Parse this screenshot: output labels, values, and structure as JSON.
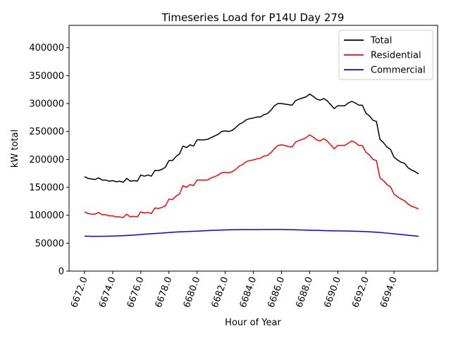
{
  "chart_data": {
    "type": "line",
    "title": "Timeseries Load for P14U   Day 279",
    "xlabel": "Hour of Year",
    "ylabel": "kW total",
    "xlim": [
      6670.9,
      6697.1
    ],
    "ylim": [
      0,
      440000
    ],
    "xticks": [
      6672.0,
      6674.0,
      6676.0,
      6678.0,
      6680.0,
      6682.0,
      6684.0,
      6686.0,
      6688.0,
      6690.0,
      6692.0,
      6694.0
    ],
    "xtick_labels": [
      "6672.0",
      "6674.0",
      "6676.0",
      "6678.0",
      "6680.0",
      "6682.0",
      "6684.0",
      "6686.0",
      "6688.0",
      "6690.0",
      "6692.0",
      "6694.0"
    ],
    "yticks": [
      0,
      50000,
      100000,
      150000,
      200000,
      250000,
      300000,
      350000,
      400000
    ],
    "ytick_labels": [
      "0",
      "50000",
      "100000",
      "150000",
      "200000",
      "250000",
      "300000",
      "350000",
      "400000"
    ],
    "legend_position": "top-right",
    "series": [
      {
        "name": "Total",
        "color": "#000000",
        "x": [
          6672.0,
          6672.25,
          6672.5,
          6672.75,
          6673.0,
          6673.25,
          6673.5,
          6673.75,
          6674.0,
          6674.25,
          6674.5,
          6674.75,
          6675.0,
          6675.25,
          6675.5,
          6675.75,
          6676.0,
          6676.25,
          6676.5,
          6676.75,
          6677.0,
          6677.25,
          6677.5,
          6677.75,
          6678.0,
          6678.25,
          6678.5,
          6678.75,
          6679.0,
          6679.25,
          6679.5,
          6679.75,
          6680.0,
          6680.25,
          6680.5,
          6680.75,
          6681.0,
          6681.25,
          6681.5,
          6681.75,
          6682.0,
          6682.25,
          6682.5,
          6682.75,
          6683.0,
          6683.25,
          6683.5,
          6683.75,
          6684.0,
          6684.25,
          6684.5,
          6684.75,
          6685.0,
          6685.25,
          6685.5,
          6685.75,
          6686.0,
          6686.25,
          6686.5,
          6686.75,
          6687.0,
          6687.25,
          6687.5,
          6687.75,
          6688.0,
          6688.25,
          6688.5,
          6688.75,
          6689.0,
          6689.25,
          6689.5,
          6689.75,
          6690.0,
          6690.25,
          6690.5,
          6690.75,
          6691.0,
          6691.25,
          6691.5,
          6691.75,
          6692.0,
          6692.25,
          6692.5,
          6692.75,
          6693.0,
          6693.25,
          6693.5,
          6693.75,
          6694.0,
          6694.25,
          6694.5,
          6694.75,
          6695.0,
          6695.25,
          6695.5,
          6695.75
        ],
        "values": [
          169000,
          166000,
          165000,
          164000,
          167000,
          163000,
          163000,
          161000,
          162000,
          160000,
          161000,
          159000,
          166000,
          161000,
          162000,
          161000,
          172000,
          170000,
          172000,
          170000,
          180000,
          180000,
          182000,
          186000,
          198000,
          198000,
          205000,
          210000,
          224000,
          221000,
          226000,
          224000,
          235000,
          235000,
          235000,
          236000,
          239000,
          242000,
          245000,
          250000,
          251000,
          250000,
          252000,
          257000,
          263000,
          266000,
          271000,
          273000,
          274000,
          276000,
          276000,
          280000,
          282000,
          288000,
          296000,
          300000,
          300000,
          299000,
          298000,
          297000,
          305000,
          308000,
          310000,
          312000,
          317000,
          313000,
          308000,
          306000,
          309000,
          305000,
          298000,
          291000,
          296000,
          296000,
          296000,
          301000,
          304000,
          301000,
          297000,
          297000,
          283000,
          278000,
          270000,
          268000,
          236000,
          230000,
          222000,
          218000,
          204000,
          199000,
          195000,
          193000,
          185000,
          181000,
          178000,
          174000
        ]
      },
      {
        "name": "Residential",
        "color": "#ff0000",
        "x": [
          6672.0,
          6672.25,
          6672.5,
          6672.75,
          6673.0,
          6673.25,
          6673.5,
          6673.75,
          6674.0,
          6674.25,
          6674.5,
          6674.75,
          6675.0,
          6675.25,
          6675.5,
          6675.75,
          6676.0,
          6676.25,
          6676.5,
          6676.75,
          6677.0,
          6677.25,
          6677.5,
          6677.75,
          6678.0,
          6678.25,
          6678.5,
          6678.75,
          6679.0,
          6679.25,
          6679.5,
          6679.75,
          6680.0,
          6680.25,
          6680.5,
          6680.75,
          6681.0,
          6681.25,
          6681.5,
          6681.75,
          6682.0,
          6682.25,
          6682.5,
          6682.75,
          6683.0,
          6683.25,
          6683.5,
          6683.75,
          6684.0,
          6684.25,
          6684.5,
          6684.75,
          6685.0,
          6685.25,
          6685.5,
          6685.75,
          6686.0,
          6686.25,
          6686.5,
          6686.75,
          6687.0,
          6687.25,
          6687.5,
          6687.75,
          6688.0,
          6688.25,
          6688.5,
          6688.75,
          6689.0,
          6689.25,
          6689.5,
          6689.75,
          6690.0,
          6690.25,
          6690.5,
          6690.75,
          6691.0,
          6691.25,
          6691.5,
          6691.75,
          6692.0,
          6692.25,
          6692.5,
          6692.75,
          6693.0,
          6693.25,
          6693.5,
          6693.75,
          6694.0,
          6694.25,
          6694.5,
          6694.75,
          6695.0,
          6695.25,
          6695.5,
          6695.75
        ],
        "values": [
          106000,
          103000,
          102000,
          102000,
          105000,
          101000,
          101000,
          99000,
          99000,
          97000,
          97000,
          96000,
          102000,
          97000,
          98000,
          97000,
          106000,
          104000,
          105000,
          103000,
          113000,
          112000,
          114000,
          117000,
          129000,
          128000,
          134000,
          138000,
          153000,
          150000,
          155000,
          153000,
          163000,
          163000,
          163000,
          163000,
          167000,
          169000,
          172000,
          176000,
          177000,
          176000,
          178000,
          182000,
          188000,
          191000,
          196000,
          198000,
          199000,
          201000,
          202000,
          206000,
          207000,
          212000,
          219000,
          225000,
          226000,
          225000,
          223000,
          222000,
          231000,
          234000,
          236000,
          239000,
          244000,
          240000,
          235000,
          233000,
          237000,
          233000,
          226000,
          219000,
          225000,
          225000,
          225000,
          229000,
          233000,
          230000,
          225000,
          225000,
          213000,
          208000,
          200000,
          198000,
          167000,
          162000,
          155000,
          151000,
          138000,
          133000,
          129000,
          126000,
          120000,
          116000,
          114000,
          111000
        ]
      },
      {
        "name": "Commercial",
        "color": "#0000ff",
        "x": [
          6672.0,
          6672.5,
          6673.0,
          6673.5,
          6674.0,
          6674.5,
          6675.0,
          6675.5,
          6676.0,
          6676.5,
          6677.0,
          6677.5,
          6678.0,
          6678.5,
          6679.0,
          6679.5,
          6680.0,
          6680.5,
          6681.0,
          6681.5,
          6682.0,
          6682.5,
          6683.0,
          6683.5,
          6684.0,
          6684.5,
          6685.0,
          6685.5,
          6686.0,
          6686.5,
          6687.0,
          6687.5,
          6688.0,
          6688.5,
          6689.0,
          6689.5,
          6690.0,
          6690.5,
          6691.0,
          6691.5,
          6692.0,
          6692.5,
          6693.0,
          6693.5,
          6694.0,
          6694.5,
          6695.0,
          6695.5,
          6695.75
        ],
        "values": [
          62500,
          62300,
          62200,
          62400,
          62800,
          63200,
          63800,
          64400,
          65500,
          66500,
          67300,
          68000,
          69000,
          70000,
          70500,
          71000,
          71500,
          72200,
          72800,
          73300,
          73800,
          74100,
          74300,
          74400,
          74300,
          74400,
          74500,
          74600,
          74500,
          74200,
          73900,
          73600,
          73200,
          73000,
          72500,
          72200,
          72000,
          71800,
          71500,
          71300,
          70800,
          70000,
          69200,
          68000,
          66800,
          65500,
          64200,
          63000,
          62200
        ]
      }
    ]
  }
}
